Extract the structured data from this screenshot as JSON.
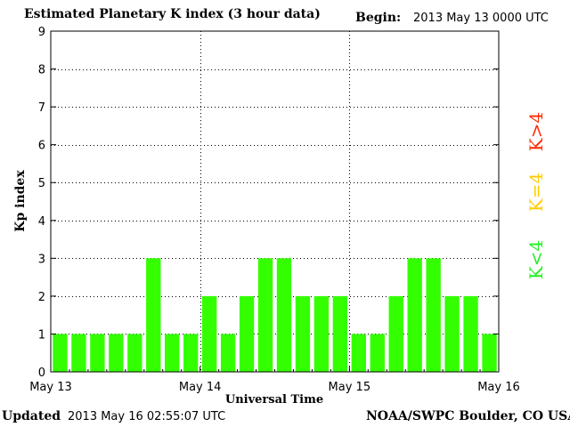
{
  "header": {
    "title": "Estimated Planetary K index (3 hour data)",
    "begin_label": "Begin:",
    "begin_value": "2013 May 13 0000 UTC"
  },
  "footer": {
    "updated_label": "Updated",
    "updated_value": "2013 May 16 02:55:07 UTC",
    "organization": "NOAA/SWPC Boulder, CO USA"
  },
  "legend": [
    {
      "label": "K>4",
      "color": "#ff2a00"
    },
    {
      "label": "K=4",
      "color": "#ffcc00"
    },
    {
      "label": "K<4",
      "color": "#22ee22"
    }
  ],
  "chart_data": {
    "type": "bar",
    "title": "Estimated Planetary K index (3 hour data)",
    "xlabel": "Universal Time",
    "ylabel": "Kp index",
    "ylim": [
      0,
      9
    ],
    "yticks": [
      0,
      1,
      2,
      3,
      4,
      5,
      6,
      7,
      8,
      9
    ],
    "x_tick_labels": [
      "May 13",
      "May 14",
      "May 15",
      "May 16"
    ],
    "bar_interval_hours": 3,
    "grid": true,
    "bar_color": "#33ff00",
    "values": [
      1,
      1,
      1,
      1,
      1,
      3,
      1,
      1,
      2,
      1,
      2,
      3,
      3,
      2,
      2,
      2,
      1,
      1,
      2,
      3,
      3,
      2,
      2,
      1
    ]
  }
}
